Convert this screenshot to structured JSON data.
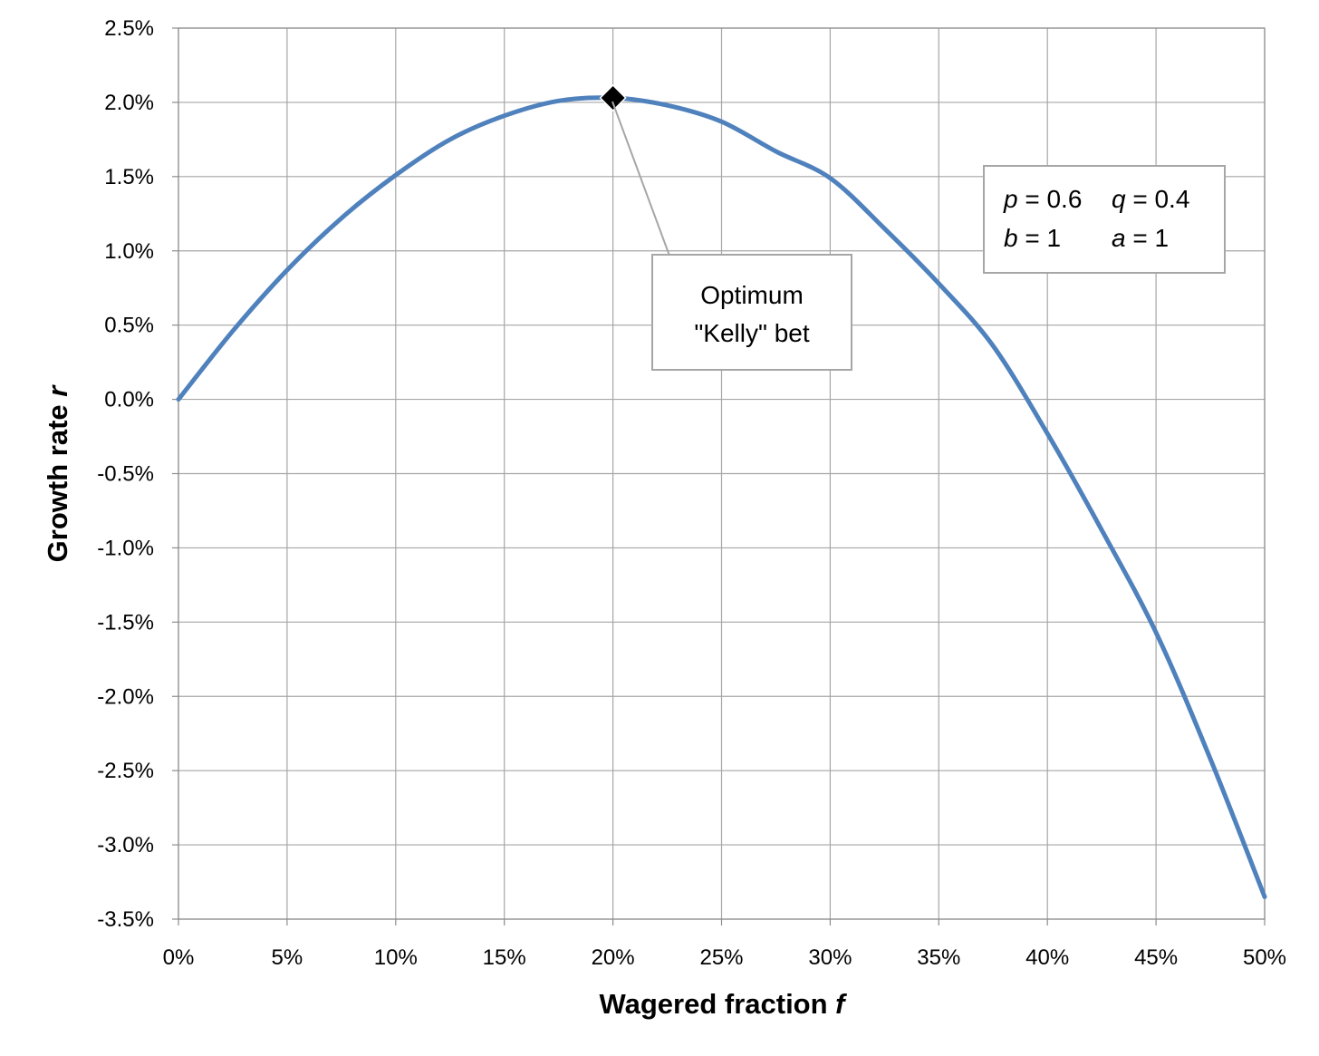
{
  "chart_data": {
    "type": "line",
    "title": "",
    "xlabel": {
      "text": "Wagered fraction ",
      "var": "f"
    },
    "ylabel": {
      "text": "Growth rate ",
      "var": "r"
    },
    "xlim": [
      0,
      0.5
    ],
    "ylim": [
      -0.035,
      0.025
    ],
    "x_ticks": [
      0,
      0.05,
      0.1,
      0.15,
      0.2,
      0.25,
      0.3,
      0.35,
      0.4,
      0.45,
      0.5
    ],
    "x_tick_labels": [
      "0%",
      "5%",
      "10%",
      "15%",
      "20%",
      "25%",
      "30%",
      "35%",
      "40%",
      "45%",
      "50%"
    ],
    "y_ticks": [
      0.025,
      0.02,
      0.015,
      0.01,
      0.005,
      0,
      -0.005,
      -0.01,
      -0.015,
      -0.02,
      -0.025,
      -0.03,
      -0.035
    ],
    "y_tick_labels": [
      "2.5%",
      "2.0%",
      "1.5%",
      "1.0%",
      "0.5%",
      "0.0%",
      "-0.5%",
      "-1.0%",
      "-1.5%",
      "-2.0%",
      "-2.5%",
      "-3.0%",
      "-3.5%"
    ],
    "grid": true,
    "series": [
      {
        "color": "#4f81bd",
        "x": [
          0,
          0.025,
          0.05,
          0.075,
          0.1,
          0.125,
          0.15,
          0.175,
          0.2,
          0.225,
          0.25,
          0.275,
          0.3,
          0.325,
          0.35,
          0.375,
          0.4,
          0.425,
          0.45,
          0.475,
          0.5
        ],
        "y": [
          0,
          0.0046,
          0.0087,
          0.0122,
          0.0151,
          0.0175,
          0.0191,
          0.0201,
          0.0203,
          0.0198,
          0.0187,
          0.0167,
          0.0149,
          0.0115,
          0.0078,
          0.0036,
          -0.0023,
          -0.0088,
          -0.0157,
          -0.0242,
          -0.0335
        ]
      }
    ],
    "marker": {
      "x": 0.2,
      "y": 0.0203,
      "shape": "diamond",
      "color": "#000000"
    },
    "annotations": [
      {
        "id": "kelly",
        "lines": [
          "Optimum",
          "\"Kelly\" bet"
        ],
        "points_to": {
          "x": 0.2,
          "y": 0.0203
        }
      },
      {
        "id": "params",
        "lines": [
          [
            {
              "var": "p",
              "text": " = 0.6"
            },
            {
              "var": "q",
              "text": " = 0.4"
            }
          ],
          [
            {
              "var": "b",
              "text": " = 1"
            },
            {
              "var": "a",
              "text": " = 1"
            }
          ]
        ]
      }
    ]
  }
}
